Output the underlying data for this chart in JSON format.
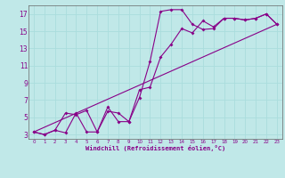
{
  "xlabel": "Windchill (Refroidissement éolien,°C)",
  "xlim": [
    -0.5,
    23.5
  ],
  "ylim": [
    2.5,
    18
  ],
  "xticks": [
    0,
    1,
    2,
    3,
    4,
    5,
    6,
    7,
    8,
    9,
    10,
    11,
    12,
    13,
    14,
    15,
    16,
    17,
    18,
    19,
    20,
    21,
    22,
    23
  ],
  "yticks": [
    3,
    5,
    7,
    9,
    11,
    13,
    15,
    17
  ],
  "bg_color": "#c0e8e8",
  "line_color": "#880088",
  "grid_color": "#aadddd",
  "series1_x": [
    0,
    1,
    2,
    3,
    4,
    5,
    6,
    7,
    8,
    9,
    10,
    11,
    12,
    13,
    14,
    15,
    16,
    17,
    18,
    19,
    20,
    21,
    22,
    23
  ],
  "series1_y": [
    3.3,
    3.0,
    3.5,
    5.5,
    5.3,
    5.8,
    3.3,
    6.2,
    4.5,
    4.5,
    7.3,
    11.5,
    17.3,
    17.5,
    17.5,
    15.8,
    15.2,
    15.3,
    16.5,
    16.5,
    16.3,
    16.5,
    17.0,
    15.8
  ],
  "series2_x": [
    0,
    1,
    2,
    3,
    4,
    5,
    6,
    7,
    8,
    9,
    10,
    11,
    12,
    13,
    14,
    15,
    16,
    17,
    18,
    19,
    20,
    21,
    22,
    23
  ],
  "series2_y": [
    3.3,
    3.0,
    3.5,
    3.2,
    5.5,
    3.3,
    3.3,
    5.7,
    5.5,
    4.5,
    8.2,
    8.5,
    12.0,
    13.5,
    15.3,
    14.8,
    16.2,
    15.5,
    16.5,
    16.5,
    16.3,
    16.5,
    17.0,
    15.8
  ],
  "series3_x": [
    0,
    23
  ],
  "series3_y": [
    3.3,
    15.8
  ]
}
